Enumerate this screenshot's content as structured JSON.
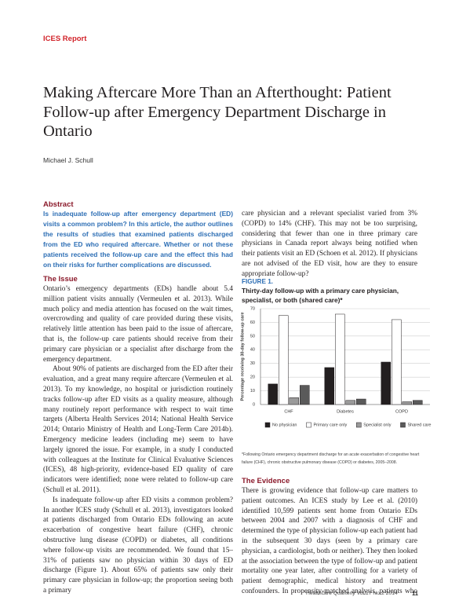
{
  "header": {
    "section": "ICES Report",
    "title": "Making Aftercare More Than an Afterthought: Patient Follow-up after Emergency Department Discharge in Ontario",
    "author": "Michael J. Schull"
  },
  "abstract": {
    "heading": "Abstract",
    "text": "Is inadequate follow-up after emergency department (ED) visits a common problem? In this article, the author outlines the results of studies that examined patients discharged from the ED who required aftercare. Whether or not these patients received the follow-up care and the effect this had on their risks for further complications are discussed."
  },
  "issue": {
    "heading": "The Issue",
    "paragraphs": [
      "Ontario’s emergency departments (EDs) handle about 5.4 million patient visits annually (Vermeulen et al. 2013). While much policy and media attention has focused on the wait times, overcrowding and quality of care provided during these visits, relatively little attention has been paid to the issue of aftercare, that is, the follow-up care patients should receive from their primary care physician or a specialist after discharge from the emergency department.",
      "About 90% of patients are discharged from the ED after their evaluation, and a great many require aftercare (Vermeulen et al. 2013). To my knowledge, no hospital or jurisdiction routinely tracks follow-up after ED visits as a quality measure, although many routinely report performance with respect to wait time targets (Alberta Health Services 2014; National Health Service 2014; Ontario Ministry of Health and Long-Term Care 2014b). Emergency medicine leaders (including me) seem to have largely ignored the issue. For example, in a study I conducted with colleagues at the Institute for Clinical Evaluative Sciences (ICES), 48 high-priority, evidence-based ED quality of care indicators were identified; none were related to follow-up care (Schull et al. 2011).",
      "Is inadequate follow-up after ED visits a common problem? In another ICES study (Schull et al. 2013), investigators looked at patients discharged from Ontario EDs following an acute exacerbation of congestive heart failure (CHF), chronic obstructive lung disease (COPD) or diabetes, all conditions where follow-up visits are recommended. We found that 15–31% of patients saw no physician within 30 days of ED discharge (Figure 1). About 65% of patients saw only their primary care physician in follow-up; the proportion seeing both a primary",
      "care physician and a relevant specialist varied from 3% (COPD) to 14% (CHF). This may not be too surprising, considering that fewer than one in three primary care physicians in Canada report always being notified when their patients visit an ED (Schoen et al. 2012). If physicians are not advised of the ED visit, how are they to ensure appropriate follow-up?"
    ]
  },
  "chart_data": {
    "type": "bar",
    "label": "FIGURE 1.",
    "title": "Thirty-day follow-up with a primary care physician, specialist, or both (shared care)*",
    "ylabel": "Percentage receiving 30-day follow-up care",
    "categories": [
      "CHF",
      "Diabetes",
      "COPD"
    ],
    "series": [
      {
        "name": "No physician",
        "color": "#231f20",
        "values": [
          15,
          27,
          31
        ]
      },
      {
        "name": "Primary care only",
        "color": "#ffffff",
        "values": [
          65,
          66,
          62
        ]
      },
      {
        "name": "Specialist only",
        "color": "#9a9a9a",
        "values": [
          5,
          3,
          2
        ]
      },
      {
        "name": "Shared care",
        "color": "#5a5a5a",
        "values": [
          14,
          4,
          3
        ]
      }
    ],
    "ylim": [
      0,
      70
    ],
    "yticks": [
      0,
      10,
      20,
      30,
      40,
      50,
      60,
      70
    ],
    "grid": true,
    "legend": "bottom",
    "note": "*Following Ontario emergency department discharge for an acute exacerbation of congestive heart failure (CHF), chronic obstructive pulmonary disease (COPD) or diabetes, 2005–2008."
  },
  "evidence": {
    "heading": "The Evidence",
    "text": "There is growing evidence that follow-up care matters to patient outcomes. An ICES study by Lee et al. (2010) identified 10,599 patients sent home from Ontario EDs between 2004 and 2007 with a diagnosis of CHF and determined the type of physician follow-up each patient had in the subsequent 30 days (seen by a primary care physician, a cardiologist, both or neither). They then looked at the association between the type of follow-up and patient mortality one year later, after controlling for a variety of patient demographic, medical history and treatment confounders. In propensity-matched analysis, patients who were seen by both a primary care physician and a cardiologist"
  },
  "footer": {
    "journal": "Healthcare Quarterly Vol.17 No.2 2014",
    "page": "11"
  }
}
